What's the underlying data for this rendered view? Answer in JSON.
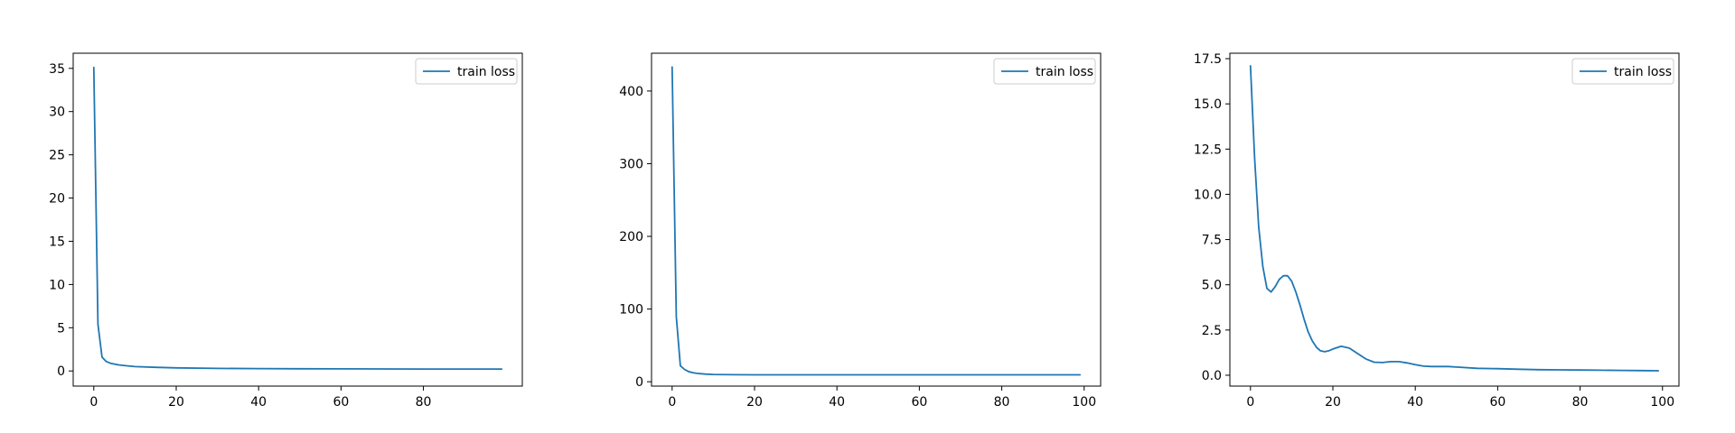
{
  "colors": {
    "series": "#1f77b4"
  },
  "chart_data": [
    {
      "type": "line",
      "title": "",
      "xlabel": "",
      "ylabel": "",
      "xlim": [
        -5,
        104
      ],
      "ylim": [
        -1.75,
        36.75
      ],
      "grid": false,
      "legend_position": "upper-right",
      "xticks": [
        0,
        20,
        40,
        60,
        80
      ],
      "xtick_labels": [
        "0",
        "20",
        "40",
        "60",
        "80"
      ],
      "yticks": [
        0,
        5,
        10,
        15,
        20,
        25,
        30,
        35
      ],
      "ytick_labels": [
        "0",
        "5",
        "10",
        "15",
        "20",
        "25",
        "30",
        "35"
      ],
      "series": [
        {
          "name": "train loss",
          "x": [
            0,
            1,
            2,
            3,
            4,
            5,
            6,
            8,
            10,
            15,
            20,
            30,
            40,
            50,
            60,
            70,
            80,
            90,
            99
          ],
          "y": [
            35.1,
            5.4,
            1.6,
            1.1,
            0.9,
            0.8,
            0.7,
            0.6,
            0.5,
            0.42,
            0.36,
            0.3,
            0.27,
            0.25,
            0.24,
            0.23,
            0.22,
            0.22,
            0.22
          ]
        }
      ]
    },
    {
      "type": "line",
      "title": "",
      "xlabel": "",
      "ylabel": "",
      "xlim": [
        -5,
        104
      ],
      "ylim": [
        -6,
        452
      ],
      "grid": false,
      "legend_position": "upper-right",
      "xticks": [
        0,
        20,
        40,
        60,
        80,
        100
      ],
      "xtick_labels": [
        "0",
        "20",
        "40",
        "60",
        "80",
        "100"
      ],
      "yticks": [
        0,
        100,
        200,
        300,
        400
      ],
      "ytick_labels": [
        "0",
        "100",
        "200",
        "300",
        "400"
      ],
      "series": [
        {
          "name": "train loss",
          "x": [
            0,
            1,
            2,
            3,
            4,
            5,
            6,
            8,
            10,
            15,
            20,
            30,
            40,
            50,
            60,
            70,
            80,
            90,
            99
          ],
          "y": [
            433,
            90,
            22,
            17,
            14,
            12.5,
            11.5,
            10.5,
            10,
            9.6,
            9.5,
            9.5,
            9.5,
            9.5,
            9.5,
            9.5,
            9.5,
            9.5,
            9.5
          ]
        }
      ]
    },
    {
      "type": "line",
      "title": "",
      "xlabel": "",
      "ylabel": "",
      "xlim": [
        -5,
        104
      ],
      "ylim": [
        -0.6,
        17.8
      ],
      "grid": false,
      "legend_position": "upper-right",
      "xticks": [
        0,
        20,
        40,
        60,
        80,
        100
      ],
      "xtick_labels": [
        "0",
        "20",
        "40",
        "60",
        "80",
        "100"
      ],
      "yticks": [
        0,
        2.5,
        5,
        7.5,
        10,
        12.5,
        15,
        17.5
      ],
      "ytick_labels": [
        "0.0",
        "2.5",
        "5.0",
        "7.5",
        "10.0",
        "12.5",
        "15.0",
        "17.5"
      ],
      "series": [
        {
          "name": "train loss",
          "x": [
            0,
            1,
            2,
            3,
            4,
            5,
            6,
            7,
            8,
            9,
            10,
            11,
            12,
            13,
            14,
            15,
            16,
            17,
            18,
            19,
            20,
            22,
            24,
            26,
            28,
            30,
            32,
            34,
            36,
            38,
            40,
            42,
            44,
            46,
            48,
            50,
            55,
            60,
            65,
            70,
            75,
            80,
            85,
            90,
            95,
            99
          ],
          "y": [
            17.1,
            12.0,
            8.2,
            6.0,
            4.8,
            4.6,
            4.9,
            5.3,
            5.5,
            5.5,
            5.2,
            4.6,
            3.9,
            3.1,
            2.4,
            1.9,
            1.55,
            1.35,
            1.3,
            1.35,
            1.45,
            1.6,
            1.5,
            1.2,
            0.9,
            0.72,
            0.7,
            0.75,
            0.75,
            0.68,
            0.58,
            0.5,
            0.48,
            0.48,
            0.48,
            0.45,
            0.38,
            0.36,
            0.33,
            0.31,
            0.3,
            0.29,
            0.28,
            0.27,
            0.26,
            0.25
          ]
        }
      ]
    }
  ]
}
